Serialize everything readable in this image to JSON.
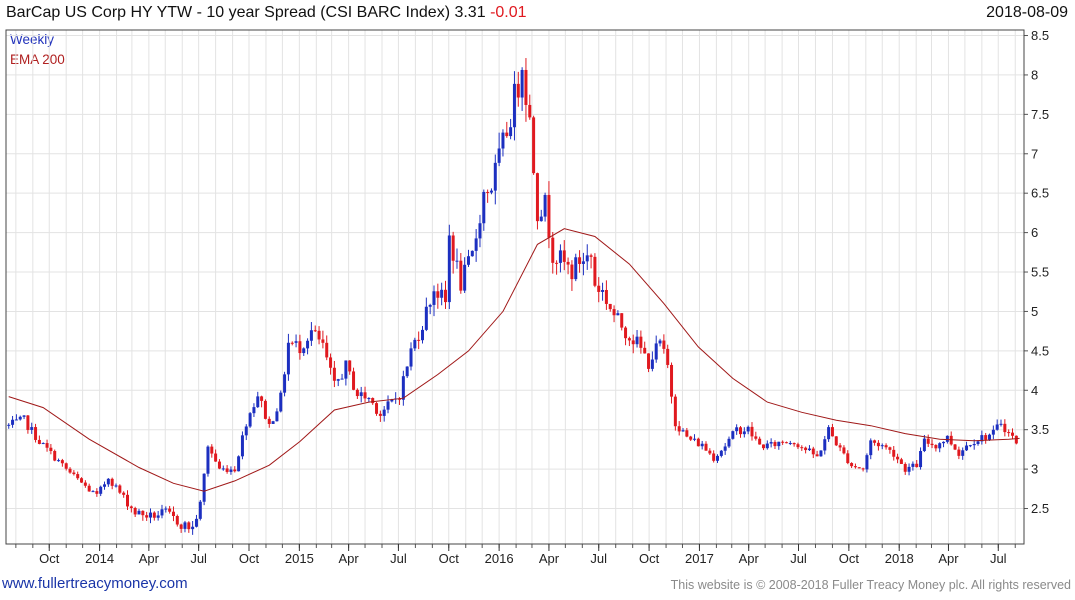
{
  "header": {
    "title": "BarCap US Corp HY YTW - 10 year Spread (CSI BARC Index) 3.31",
    "change": "-0.01",
    "date": "2018-08-09"
  },
  "legend": {
    "weekly": "Weekly",
    "ema": "EMA 200"
  },
  "footer": {
    "link": "www.fullertreacymoney.com",
    "copyright": "This website is © 2008-2018 Fuller Treacy Money plc. All rights reserved"
  },
  "colors": {
    "up": "#1c2fc0",
    "down": "#e0191f",
    "ema": "#a01818",
    "grid": "#e3e3e3"
  },
  "chart_data": {
    "type": "candlestick",
    "title": "BarCap US Corp HY YTW - 10 year Spread (CSI BARC Index)",
    "last": 3.31,
    "change": -0.01,
    "y_ticks": [
      2.5,
      3,
      3.5,
      4,
      4.5,
      5,
      5.5,
      6,
      6.5,
      7,
      7.5,
      8,
      8.5
    ],
    "ylim": [
      2.05,
      8.57
    ],
    "x_ticks": [
      "Oct",
      "2014",
      "Apr",
      "Jul",
      "Oct",
      "2015",
      "Apr",
      "Jul",
      "Oct",
      "2016",
      "Apr",
      "Jul",
      "Oct",
      "2017",
      "Apr",
      "Jul",
      "Oct",
      "2018",
      "Apr",
      "Jul"
    ],
    "grid": true,
    "series": [
      {
        "name": "Weekly",
        "style": "candles",
        "anchors": [
          [
            "2013-07-19",
            3.55
          ],
          [
            "2013-08-16",
            3.62
          ],
          [
            "2013-09-13",
            3.35
          ],
          [
            "2013-10-11",
            3.15
          ],
          [
            "2013-11-08",
            2.95
          ],
          [
            "2013-12-06",
            2.78
          ],
          [
            "2013-12-27",
            2.65
          ],
          [
            "2014-01-17",
            2.9
          ],
          [
            "2014-02-07",
            2.7
          ],
          [
            "2014-03-07",
            2.45
          ],
          [
            "2014-04-04",
            2.4
          ],
          [
            "2014-05-02",
            2.45
          ],
          [
            "2014-05-30",
            2.3
          ],
          [
            "2014-06-20",
            2.25
          ],
          [
            "2014-07-04",
            2.55
          ],
          [
            "2014-07-18",
            3.3
          ],
          [
            "2014-08-08",
            3.0
          ],
          [
            "2014-09-05",
            3.0
          ],
          [
            "2014-09-26",
            3.6
          ],
          [
            "2014-10-17",
            3.95
          ],
          [
            "2014-11-07",
            3.55
          ],
          [
            "2014-11-28",
            3.9
          ],
          [
            "2014-12-12",
            4.6
          ],
          [
            "2015-01-02",
            4.55
          ],
          [
            "2015-01-23",
            4.75
          ],
          [
            "2015-02-13",
            4.55
          ],
          [
            "2015-03-06",
            4.05
          ],
          [
            "2015-03-27",
            4.3
          ],
          [
            "2015-04-17",
            3.95
          ],
          [
            "2015-05-08",
            3.9
          ],
          [
            "2015-05-29",
            3.7
          ],
          [
            "2015-06-19",
            3.85
          ],
          [
            "2015-07-03",
            3.95
          ],
          [
            "2015-07-24",
            4.5
          ],
          [
            "2015-08-14",
            4.85
          ],
          [
            "2015-09-04",
            5.3
          ],
          [
            "2015-09-25",
            5.1
          ],
          [
            "2015-10-02",
            5.95
          ],
          [
            "2015-10-23",
            5.35
          ],
          [
            "2015-11-13",
            5.7
          ],
          [
            "2015-12-04",
            6.5
          ],
          [
            "2015-12-18",
            6.6
          ],
          [
            "2016-01-08",
            7.1
          ],
          [
            "2016-01-22",
            7.5
          ],
          [
            "2016-02-05",
            7.9
          ],
          [
            "2016-02-12",
            8.2
          ],
          [
            "2016-02-26",
            7.4
          ],
          [
            "2016-03-11",
            6.3
          ],
          [
            "2016-03-25",
            6.35
          ],
          [
            "2016-04-08",
            5.75
          ],
          [
            "2016-04-29",
            5.6
          ],
          [
            "2016-05-13",
            5.5
          ],
          [
            "2016-05-27",
            5.65
          ],
          [
            "2016-06-17",
            5.7
          ],
          [
            "2016-06-24",
            5.35
          ],
          [
            "2016-07-08",
            5.25
          ],
          [
            "2016-07-29",
            4.95
          ],
          [
            "2016-08-19",
            4.75
          ],
          [
            "2016-09-09",
            4.6
          ],
          [
            "2016-09-30",
            4.35
          ],
          [
            "2016-10-21",
            4.6
          ],
          [
            "2016-11-04",
            4.3
          ],
          [
            "2016-11-18",
            3.6
          ],
          [
            "2016-12-09",
            3.4
          ],
          [
            "2017-01-06",
            3.3
          ],
          [
            "2017-01-27",
            3.15
          ],
          [
            "2017-02-17",
            3.3
          ],
          [
            "2017-03-10",
            3.5
          ],
          [
            "2017-03-31",
            3.5
          ],
          [
            "2017-04-21",
            3.3
          ],
          [
            "2017-05-12",
            3.3
          ],
          [
            "2017-06-02",
            3.35
          ],
          [
            "2017-06-23",
            3.35
          ],
          [
            "2017-07-14",
            3.25
          ],
          [
            "2017-08-04",
            3.15
          ],
          [
            "2017-08-25",
            3.5
          ],
          [
            "2017-09-15",
            3.25
          ],
          [
            "2017-10-06",
            3.05
          ],
          [
            "2017-10-27",
            3.0
          ],
          [
            "2017-11-10",
            3.35
          ],
          [
            "2017-12-01",
            3.3
          ],
          [
            "2017-12-22",
            3.2
          ],
          [
            "2018-01-12",
            3.0
          ],
          [
            "2018-02-02",
            3.05
          ],
          [
            "2018-02-16",
            3.35
          ],
          [
            "2018-03-09",
            3.3
          ],
          [
            "2018-03-30",
            3.4
          ],
          [
            "2018-04-20",
            3.2
          ],
          [
            "2018-05-11",
            3.35
          ],
          [
            "2018-06-01",
            3.4
          ],
          [
            "2018-06-22",
            3.45
          ],
          [
            "2018-07-06",
            3.6
          ],
          [
            "2018-07-20",
            3.45
          ],
          [
            "2018-08-09",
            3.31
          ]
        ]
      },
      {
        "name": "EMA 200",
        "style": "line",
        "points": [
          [
            "2013-07-19",
            3.92
          ],
          [
            "2013-09-20",
            3.78
          ],
          [
            "2013-12-13",
            3.38
          ],
          [
            "2014-03-14",
            3.02
          ],
          [
            "2014-05-16",
            2.82
          ],
          [
            "2014-07-11",
            2.72
          ],
          [
            "2014-09-05",
            2.85
          ],
          [
            "2014-11-07",
            3.05
          ],
          [
            "2015-01-02",
            3.35
          ],
          [
            "2015-03-06",
            3.75
          ],
          [
            "2015-05-08",
            3.85
          ],
          [
            "2015-07-10",
            3.9
          ],
          [
            "2015-09-11",
            4.2
          ],
          [
            "2015-11-06",
            4.5
          ],
          [
            "2016-01-08",
            5.0
          ],
          [
            "2016-03-11",
            5.85
          ],
          [
            "2016-04-29",
            6.05
          ],
          [
            "2016-06-24",
            5.95
          ],
          [
            "2016-08-26",
            5.6
          ],
          [
            "2016-10-28",
            5.1
          ],
          [
            "2016-12-30",
            4.55
          ],
          [
            "2017-03-03",
            4.15
          ],
          [
            "2017-05-05",
            3.85
          ],
          [
            "2017-07-07",
            3.72
          ],
          [
            "2017-09-08",
            3.62
          ],
          [
            "2017-11-10",
            3.55
          ],
          [
            "2018-01-12",
            3.45
          ],
          [
            "2018-03-16",
            3.38
          ],
          [
            "2018-05-18",
            3.36
          ],
          [
            "2018-07-20",
            3.38
          ],
          [
            "2018-08-09",
            3.39
          ]
        ]
      }
    ]
  }
}
